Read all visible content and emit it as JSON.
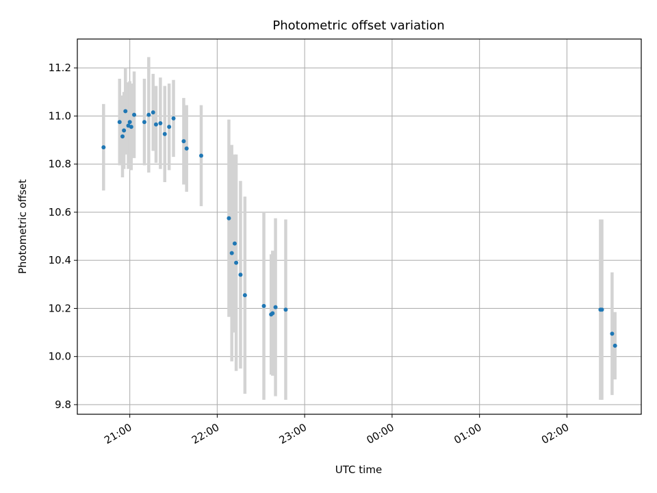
{
  "chart_data": {
    "type": "scatter",
    "title": "Photometric offset variation",
    "xlabel": "UTC time",
    "ylabel": "Photometric offset",
    "x_ticks": [
      "21:00",
      "22:00",
      "23:00",
      "00:00",
      "01:00",
      "02:00"
    ],
    "x_tick_hours": [
      21,
      22,
      23,
      24,
      25,
      26
    ],
    "y_ticks": [
      "9.8",
      "10.0",
      "10.2",
      "10.4",
      "10.6",
      "10.8",
      "11.0",
      "11.2"
    ],
    "y_tick_values": [
      9.8,
      10.0,
      10.2,
      10.4,
      10.6,
      10.8,
      11.0,
      11.2
    ],
    "xlim_hours": [
      20.4,
      26.85
    ],
    "ylim": [
      9.76,
      11.32
    ],
    "grid": true,
    "point_color": "#1f77b4",
    "errorbar_color": "#d3d3d3",
    "points": [
      {
        "t": "20:42",
        "y": 10.87,
        "err": 0.18
      },
      {
        "t": "20:53",
        "y": 10.975,
        "err": 0.18
      },
      {
        "t": "20:55",
        "y": 10.915,
        "err": 0.17
      },
      {
        "t": "20:56",
        "y": 10.94,
        "err": 0.16
      },
      {
        "t": "20:57",
        "y": 11.02,
        "err": 0.18
      },
      {
        "t": "20:59",
        "y": 10.96,
        "err": 0.18
      },
      {
        "t": "21:00",
        "y": 10.975,
        "err": 0.17
      },
      {
        "t": "21:01",
        "y": 10.955,
        "err": 0.18
      },
      {
        "t": "21:03",
        "y": 11.005,
        "err": 0.18
      },
      {
        "t": "21:10",
        "y": 10.975,
        "err": 0.18
      },
      {
        "t": "21:13",
        "y": 11.005,
        "err": 0.24
      },
      {
        "t": "21:16",
        "y": 11.015,
        "err": 0.16
      },
      {
        "t": "21:18",
        "y": 10.965,
        "err": 0.16
      },
      {
        "t": "21:21",
        "y": 10.97,
        "err": 0.19
      },
      {
        "t": "21:24",
        "y": 10.925,
        "err": 0.2
      },
      {
        "t": "21:27",
        "y": 10.955,
        "err": 0.18
      },
      {
        "t": "21:30",
        "y": 10.99,
        "err": 0.16
      },
      {
        "t": "21:37",
        "y": 10.895,
        "err": 0.18
      },
      {
        "t": "21:39",
        "y": 10.865,
        "err": 0.18
      },
      {
        "t": "21:49",
        "y": 10.835,
        "err": 0.21
      },
      {
        "t": "22:08",
        "y": 10.575,
        "err": 0.41
      },
      {
        "t": "22:10",
        "y": 10.43,
        "err": 0.45
      },
      {
        "t": "22:12",
        "y": 10.47,
        "err": 0.37
      },
      {
        "t": "22:13",
        "y": 10.39,
        "err": 0.45
      },
      {
        "t": "22:16",
        "y": 10.34,
        "err": 0.39
      },
      {
        "t": "22:19",
        "y": 10.255,
        "err": 0.41
      },
      {
        "t": "22:32",
        "y": 10.21,
        "err": 0.39
      },
      {
        "t": "22:37",
        "y": 10.175,
        "err": 0.25
      },
      {
        "t": "22:38",
        "y": 10.18,
        "err": 0.26
      },
      {
        "t": "22:40",
        "y": 10.205,
        "err": 0.37
      },
      {
        "t": "22:47",
        "y": 10.195,
        "err": 0.375
      },
      {
        "t": "02:23",
        "y": 10.195,
        "err": 0.375
      },
      {
        "t": "02:24",
        "y": 10.195,
        "err": 0.375
      },
      {
        "t": "02:31",
        "y": 10.095,
        "err": 0.255
      },
      {
        "t": "02:33",
        "y": 10.045,
        "err": 0.14
      }
    ]
  }
}
